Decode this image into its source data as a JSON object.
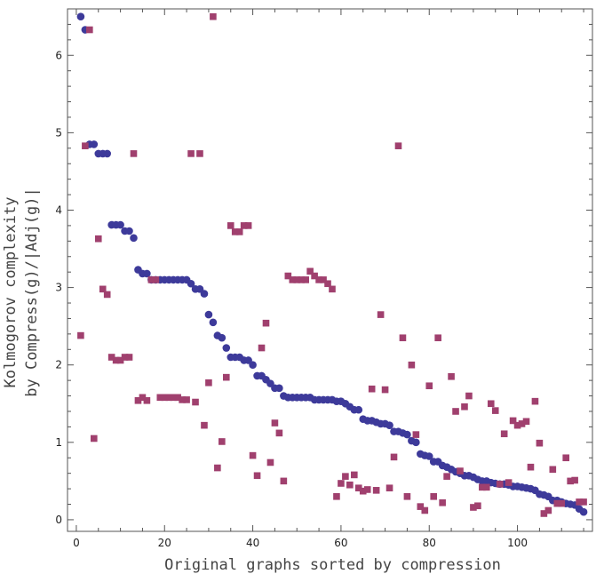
{
  "chart_data": {
    "type": "scatter",
    "title": "",
    "xlabel": "Original graphs sorted by compression",
    "ylabel_lines": [
      "Kolmogorov complexity",
      "by Compress(g)/|Adj(g)|"
    ],
    "xlim": [
      -2,
      117
    ],
    "ylim": [
      -0.15,
      6.6
    ],
    "x_ticks": [
      0,
      20,
      40,
      60,
      80,
      100
    ],
    "y_ticks": [
      0,
      1,
      2,
      3,
      4,
      5,
      6
    ],
    "colors": {
      "circles": "#3d3a9a",
      "squares": "#a0406e",
      "frame": "#555555"
    },
    "series": [
      {
        "name": "circles",
        "marker": "circle",
        "x": [
          1,
          2,
          3,
          4,
          5,
          6,
          7,
          8,
          9,
          10,
          11,
          12,
          13,
          14,
          15,
          16,
          17,
          18,
          19,
          20,
          21,
          22,
          23,
          24,
          25,
          26,
          27,
          28,
          29,
          30,
          31,
          32,
          33,
          34,
          35,
          36,
          37,
          38,
          39,
          40,
          41,
          42,
          43,
          44,
          45,
          46,
          47,
          48,
          49,
          50,
          51,
          52,
          53,
          54,
          55,
          56,
          57,
          58,
          59,
          60,
          61,
          62,
          63,
          64,
          65,
          66,
          67,
          68,
          69,
          70,
          71,
          72,
          73,
          74,
          75,
          76,
          77,
          78,
          79,
          80,
          81,
          82,
          83,
          84,
          85,
          86,
          87,
          88,
          89,
          90,
          91,
          92,
          93,
          94,
          95,
          96,
          97,
          98,
          99,
          100,
          101,
          102,
          103,
          104,
          105,
          106,
          107,
          108,
          109,
          110,
          111,
          112,
          113,
          114,
          115
        ],
        "y": [
          6.5,
          6.33,
          4.85,
          4.85,
          4.73,
          4.73,
          4.73,
          3.81,
          3.81,
          3.81,
          3.73,
          3.73,
          3.64,
          3.23,
          3.18,
          3.18,
          3.1,
          3.1,
          3.1,
          3.1,
          3.1,
          3.1,
          3.1,
          3.1,
          3.1,
          3.05,
          2.98,
          2.98,
          2.92,
          2.65,
          2.55,
          2.38,
          2.35,
          2.22,
          2.1,
          2.1,
          2.1,
          2.06,
          2.06,
          2.0,
          1.86,
          1.86,
          1.81,
          1.76,
          1.7,
          1.7,
          1.6,
          1.58,
          1.58,
          1.58,
          1.58,
          1.58,
          1.58,
          1.55,
          1.55,
          1.55,
          1.55,
          1.55,
          1.53,
          1.53,
          1.5,
          1.46,
          1.42,
          1.42,
          1.3,
          1.28,
          1.28,
          1.26,
          1.24,
          1.24,
          1.22,
          1.14,
          1.14,
          1.12,
          1.1,
          1.02,
          1.0,
          0.85,
          0.83,
          0.82,
          0.75,
          0.75,
          0.7,
          0.68,
          0.65,
          0.62,
          0.6,
          0.57,
          0.57,
          0.55,
          0.52,
          0.5,
          0.5,
          0.48,
          0.47,
          0.46,
          0.46,
          0.45,
          0.43,
          0.43,
          0.42,
          0.41,
          0.4,
          0.38,
          0.33,
          0.32,
          0.3,
          0.25,
          0.25,
          0.23,
          0.21,
          0.2,
          0.19,
          0.14,
          0.1
        ]
      },
      {
        "name": "squares",
        "marker": "square",
        "x": [
          1,
          2,
          3,
          4,
          5,
          6,
          7,
          8,
          9,
          10,
          11,
          12,
          13,
          14,
          15,
          16,
          17,
          18,
          19,
          20,
          21,
          22,
          23,
          24,
          25,
          26,
          27,
          28,
          29,
          30,
          31,
          32,
          33,
          34,
          35,
          36,
          37,
          38,
          39,
          40,
          41,
          42,
          43,
          44,
          45,
          46,
          47,
          48,
          49,
          50,
          51,
          52,
          53,
          54,
          55,
          56,
          57,
          58,
          59,
          60,
          61,
          62,
          63,
          64,
          65,
          66,
          67,
          68,
          69,
          70,
          71,
          72,
          73,
          74,
          75,
          76,
          77,
          78,
          79,
          80,
          81,
          82,
          83,
          84,
          85,
          86,
          87,
          88,
          89,
          90,
          91,
          92,
          93,
          94,
          95,
          96,
          97,
          98,
          99,
          100,
          101,
          102,
          103,
          104,
          105,
          106,
          107,
          108,
          109,
          110,
          111,
          112,
          113,
          114,
          115
        ],
        "y": [
          2.38,
          4.83,
          6.33,
          1.05,
          3.63,
          2.98,
          2.91,
          2.1,
          2.06,
          2.06,
          2.1,
          2.1,
          4.73,
          1.54,
          1.58,
          1.54,
          3.1,
          3.1,
          1.58,
          1.58,
          1.58,
          1.58,
          1.58,
          1.55,
          1.55,
          4.73,
          1.52,
          4.73,
          1.22,
          1.77,
          6.5,
          0.67,
          1.01,
          1.84,
          3.8,
          3.72,
          3.72,
          3.8,
          3.8,
          0.83,
          0.57,
          2.22,
          2.54,
          0.74,
          1.25,
          1.12,
          0.5,
          3.15,
          3.1,
          3.1,
          3.1,
          3.1,
          3.21,
          3.15,
          3.1,
          3.1,
          3.05,
          2.98,
          0.3,
          0.47,
          0.56,
          0.45,
          0.58,
          0.41,
          0.37,
          0.39,
          1.69,
          0.38,
          2.65,
          1.68,
          0.41,
          0.81,
          4.83,
          2.35,
          0.3,
          2.0,
          1.1,
          0.17,
          0.12,
          1.73,
          0.3,
          2.35,
          0.22,
          0.56,
          1.85,
          1.4,
          0.63,
          1.46,
          1.6,
          0.16,
          0.18,
          0.42,
          0.42,
          1.5,
          1.41,
          0.46,
          1.11,
          0.48,
          1.28,
          1.22,
          1.24,
          1.27,
          0.68,
          1.53,
          0.99,
          0.08,
          0.12,
          0.65,
          0.21,
          0.21,
          0.8,
          0.5,
          0.51,
          0.23,
          0.23
        ]
      }
    ]
  }
}
